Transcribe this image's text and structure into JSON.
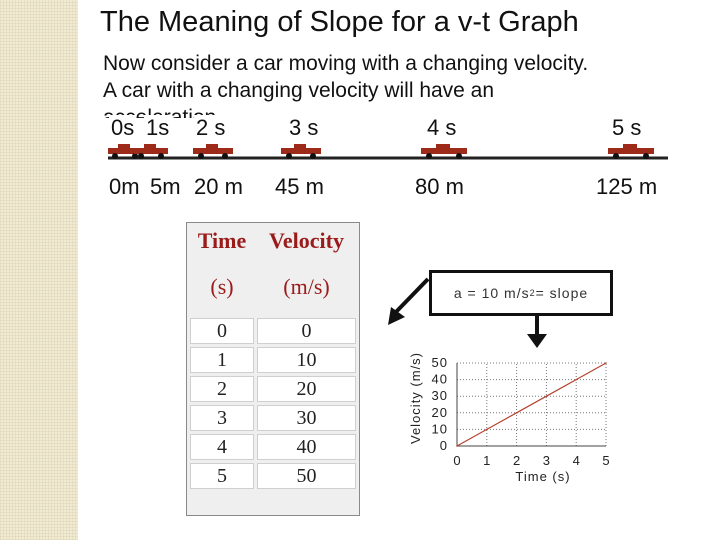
{
  "title": "The Meaning of Slope for a v-t Graph",
  "body": {
    "line1": "Now consider a car moving with a changing velocity.",
    "line2": "A car with a changing velocity will have an",
    "line3": "acceleration."
  },
  "motion_strip": {
    "times": [
      "0s",
      "1s",
      "2 s",
      "3 s",
      "4 s",
      "5 s"
    ],
    "distances": [
      "0m",
      "5m",
      "20 m",
      "45 m",
      "80 m",
      "125 m"
    ]
  },
  "table": {
    "headers": [
      "Time",
      "Velocity"
    ],
    "units": [
      "(s)",
      "(m/s)"
    ],
    "rows": [
      [
        "0",
        "0"
      ],
      [
        "1",
        "10"
      ],
      [
        "2",
        "20"
      ],
      [
        "3",
        "30"
      ],
      [
        "4",
        "40"
      ],
      [
        "5",
        "50"
      ]
    ]
  },
  "callout": {
    "prefix": "a = 10 m/s",
    "exponent": "2",
    "suffix": " = slope"
  },
  "chart_data": {
    "type": "line",
    "xlabel": "Time (s)",
    "ylabel": "Velocity (m/s)",
    "x_ticks": [
      "0",
      "1",
      "2",
      "3",
      "4",
      "5"
    ],
    "y_ticks": [
      "0",
      "10",
      "20",
      "30",
      "40",
      "50"
    ],
    "xlim": [
      0,
      5
    ],
    "ylim": [
      0,
      50
    ],
    "grid": true,
    "line_color": "#b5432e",
    "series": [
      {
        "x": [
          0,
          1,
          2,
          3,
          4,
          5
        ],
        "y": [
          0,
          10,
          20,
          30,
          40,
          50
        ]
      }
    ]
  },
  "colors": {
    "car": "#9e2a1a",
    "table_header": "#9b1b1b",
    "sidebar": "#f1ebd3"
  }
}
